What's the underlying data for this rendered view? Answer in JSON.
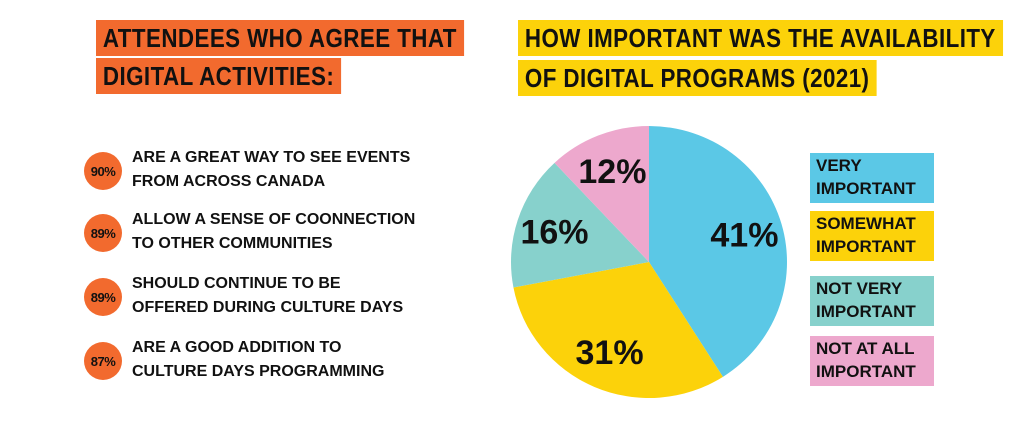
{
  "left": {
    "title_line1": "ATTENDEES WHO AGREE THAT",
    "title_line2": "DIGITAL ACTIVITIES:",
    "stats": [
      {
        "pct": "90%",
        "text": "ARE A GREAT WAY TO SEE EVENTS\nFROM ACROSS CANADA"
      },
      {
        "pct": "89%",
        "text": "ALLOW  A SENSE OF COONNECTION\nTO OTHER COMMUNITIES"
      },
      {
        "pct": "89%",
        "text": "SHOULD CONTINUE TO BE\nOFFERED DURING CULTURE DAYS"
      },
      {
        "pct": "87%",
        "text": "ARE A GOOD ADDITION TO\nCULTURE DAYS PROGRAMMING"
      }
    ]
  },
  "right": {
    "title_line1": "HOW IMPORTANT WAS THE AVAILABILITY",
    "title_line2": "OF DIGITAL PROGRAMS (2021)"
  },
  "colors": {
    "orange": "#f26a2e",
    "yellow": "#fcd20a",
    "blue": "#5bc8e6",
    "teal": "#87d1cc",
    "pink": "#eda8cd"
  },
  "chart_data": {
    "type": "pie",
    "title": "HOW IMPORTANT WAS THE AVAILABILITY OF DIGITAL PROGRAMS (2021)",
    "slices": [
      {
        "label": "VERY\nIMPORTANT",
        "value": 41,
        "display": "41%",
        "color": "#5bc8e6"
      },
      {
        "label": "SOMEWHAT\nIMPORTANT",
        "value": 31,
        "display": "31%",
        "color": "#fcd20a"
      },
      {
        "label": "NOT VERY\nIMPORTANT",
        "value": 16,
        "display": "16%",
        "color": "#87d1cc"
      },
      {
        "label": "NOT AT ALL\nIMPORTANT",
        "value": 12,
        "display": "12%",
        "color": "#eda8cd"
      }
    ],
    "legend_position": "right"
  }
}
